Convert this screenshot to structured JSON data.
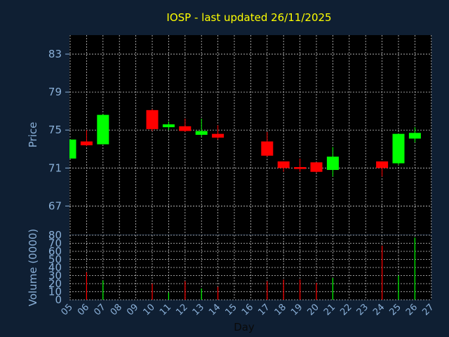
{
  "colors": {
    "background": "#0f1f33",
    "plot_background": "#000000",
    "up": "#00ff00",
    "down": "#ff0000",
    "grid": "#c8c8c8",
    "axis_text": "#8ab0d8",
    "title": "#ffff00",
    "xlabel": "#0a0a0a"
  },
  "chart_data": [
    {
      "type": "candlestick",
      "title": "IOSP - last updated 26/11/2025",
      "ylabel": "Price",
      "ylim": [
        64,
        85
      ],
      "yticks": [
        67,
        71,
        75,
        79,
        83
      ],
      "grid": true,
      "x_ticks": [
        "05",
        "06",
        "07",
        "08",
        "09",
        "10",
        "11",
        "12",
        "13",
        "14",
        "15",
        "16",
        "17",
        "18",
        "19",
        "20",
        "21",
        "22",
        "23",
        "24",
        "25",
        "26",
        "27"
      ],
      "candles": [
        {
          "day": "05",
          "open": 72.0,
          "high": 74.0,
          "low": 72.0,
          "close": 74.0
        },
        {
          "day": "06",
          "open": 73.8,
          "high": 75.0,
          "low": 73.3,
          "close": 73.4
        },
        {
          "day": "07",
          "open": 73.5,
          "high": 76.7,
          "low": 73.5,
          "close": 76.6
        },
        {
          "day": "10",
          "open": 77.1,
          "high": 77.2,
          "low": 74.9,
          "close": 75.1
        },
        {
          "day": "11",
          "open": 75.3,
          "high": 75.9,
          "low": 75.0,
          "close": 75.6
        },
        {
          "day": "12",
          "open": 75.4,
          "high": 76.2,
          "low": 74.8,
          "close": 74.9
        },
        {
          "day": "13",
          "open": 74.5,
          "high": 76.2,
          "low": 74.3,
          "close": 74.9
        },
        {
          "day": "14",
          "open": 74.6,
          "high": 75.5,
          "low": 74.0,
          "close": 74.2
        },
        {
          "day": "17",
          "open": 73.8,
          "high": 74.8,
          "low": 72.2,
          "close": 72.3
        },
        {
          "day": "18",
          "open": 71.7,
          "high": 71.7,
          "low": 70.6,
          "close": 71.0
        },
        {
          "day": "19",
          "open": 71.1,
          "high": 72.0,
          "low": 70.6,
          "close": 70.9
        },
        {
          "day": "20",
          "open": 71.6,
          "high": 71.6,
          "low": 70.5,
          "close": 70.6
        },
        {
          "day": "21",
          "open": 70.8,
          "high": 73.2,
          "low": 70.1,
          "close": 72.2
        },
        {
          "day": "24",
          "open": 71.7,
          "high": 71.7,
          "low": 70.1,
          "close": 71.0
        },
        {
          "day": "25",
          "open": 71.5,
          "high": 74.6,
          "low": 71.3,
          "close": 74.6
        },
        {
          "day": "26",
          "open": 74.1,
          "high": 75.3,
          "low": 73.7,
          "close": 74.7
        }
      ]
    },
    {
      "type": "bar",
      "ylabel": "Volume (0000)",
      "xlabel": "Day",
      "ylim": [
        0,
        80
      ],
      "yticks": [
        0,
        10,
        20,
        30,
        40,
        50,
        60,
        70,
        80
      ],
      "grid": true,
      "volumes": [
        {
          "day": "06",
          "value": 34,
          "dir": "down"
        },
        {
          "day": "07",
          "value": 24,
          "dir": "up"
        },
        {
          "day": "10",
          "value": 20,
          "dir": "down"
        },
        {
          "day": "11",
          "value": 9,
          "dir": "up"
        },
        {
          "day": "12",
          "value": 23,
          "dir": "down"
        },
        {
          "day": "13",
          "value": 14,
          "dir": "up"
        },
        {
          "day": "14",
          "value": 16,
          "dir": "down"
        },
        {
          "day": "17",
          "value": 23,
          "dir": "down"
        },
        {
          "day": "18",
          "value": 25,
          "dir": "down"
        },
        {
          "day": "19",
          "value": 25,
          "dir": "down"
        },
        {
          "day": "20",
          "value": 21,
          "dir": "down"
        },
        {
          "day": "21",
          "value": 27,
          "dir": "up"
        },
        {
          "day": "24",
          "value": 67,
          "dir": "down"
        },
        {
          "day": "25",
          "value": 30,
          "dir": "up"
        },
        {
          "day": "26",
          "value": 77,
          "dir": "up"
        }
      ]
    }
  ]
}
